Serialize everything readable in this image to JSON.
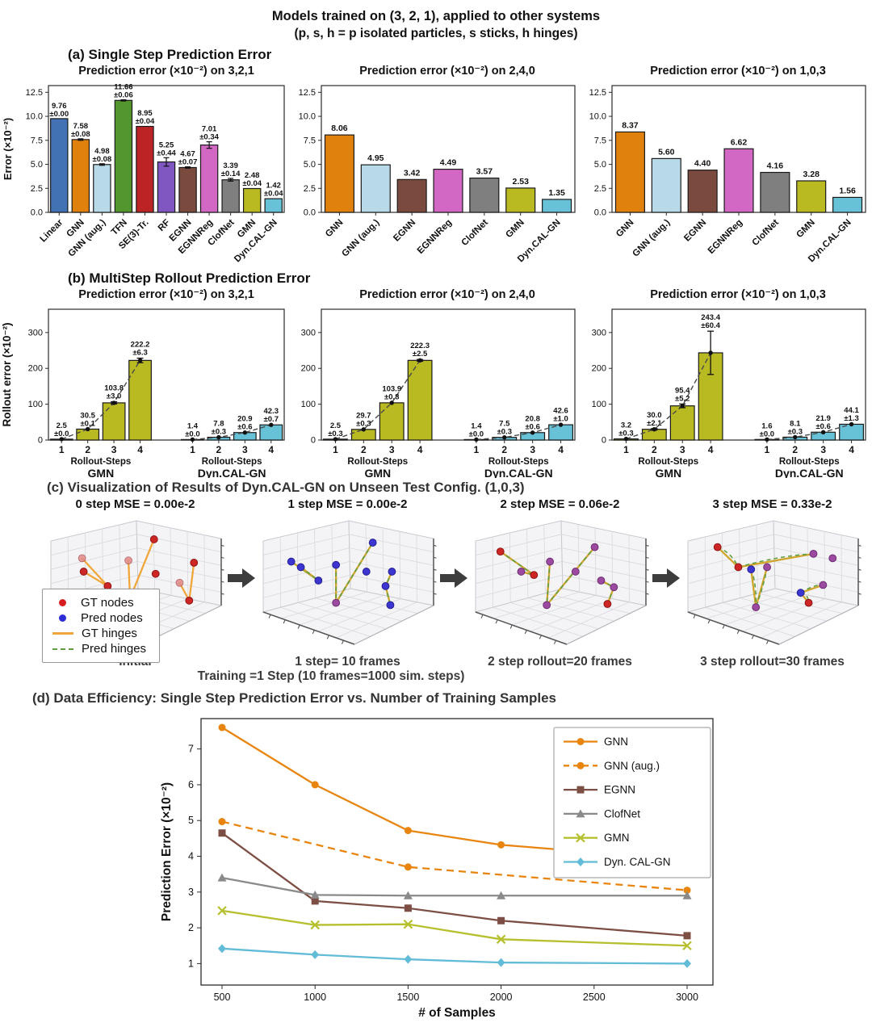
{
  "header": {
    "title_line1": "Models trained on (3, 2, 1), applied to other systems",
    "title_line2": "(p, s, h = p isolated particles, s sticks, h hinges)"
  },
  "panel_a": {
    "heading": "(a) Single Step Prediction Error"
  },
  "panel_b": {
    "heading": "(b) MultiStep Rollout Prediction Error"
  },
  "panel_c": {
    "heading": "(c) Visualization of Results of Dyn.CAL-GN on Unseen Test Config. (1,0,3)",
    "footnote": "Training =1 Step (10 frames=1000 sim. steps)",
    "legend": [
      {
        "label": "GT nodes",
        "marker": "dot",
        "color": "#d62020"
      },
      {
        "label": "Pred nodes",
        "marker": "dot",
        "color": "#2d2dd6"
      },
      {
        "label": "GT hinges",
        "marker": "line",
        "color": "#f0a63a"
      },
      {
        "label": "Pred hinges",
        "marker": "dash",
        "color": "#5f9e45"
      }
    ],
    "panels": [
      {
        "mse_title": "0 step MSE = 0.00e-2",
        "caption": "Initial",
        "edge_style": "gt",
        "diverge": false,
        "nodes": [
          [
            0.17,
            0.3,
            "faint"
          ],
          [
            0.18,
            0.42,
            "gt"
          ],
          [
            0.33,
            0.55,
            "gt"
          ],
          [
            0.46,
            0.32,
            "faint"
          ],
          [
            0.47,
            0.66,
            "faint"
          ],
          [
            0.62,
            0.13,
            "gt"
          ],
          [
            0.63,
            0.44,
            "gt"
          ],
          [
            0.78,
            0.52,
            "faint"
          ],
          [
            0.84,
            0.68,
            "gt"
          ],
          [
            0.87,
            0.34,
            "gt"
          ]
        ],
        "edges": [
          [
            0,
            2
          ],
          [
            1,
            2
          ],
          [
            3,
            4
          ],
          [
            4,
            5
          ],
          [
            7,
            8
          ],
          [
            8,
            9
          ]
        ]
      },
      {
        "mse_title": "1 step MSE = 0.00e-2",
        "caption": "1 step= 10 frames",
        "edge_style": "both",
        "diverge": false,
        "nodes": [
          [
            0.15,
            0.33,
            "pred"
          ],
          [
            0.21,
            0.38,
            "pred"
          ],
          [
            0.32,
            0.5,
            "pred"
          ],
          [
            0.43,
            0.36,
            "pred"
          ],
          [
            0.43,
            0.7,
            "mix"
          ],
          [
            0.66,
            0.16,
            "pred"
          ],
          [
            0.62,
            0.42,
            "pred"
          ],
          [
            0.78,
            0.42,
            "pred"
          ],
          [
            0.74,
            0.55,
            "pred"
          ],
          [
            0.77,
            0.72,
            "pred"
          ]
        ],
        "edges": [
          [
            0,
            2
          ],
          [
            1,
            2
          ],
          [
            3,
            4
          ],
          [
            4,
            5
          ],
          [
            7,
            8
          ],
          [
            8,
            9
          ]
        ]
      },
      {
        "mse_title": "2 step MSE = 0.06e-2",
        "caption": "2 step rollout=20 frames",
        "edge_style": "both",
        "diverge": false,
        "nodes": [
          [
            0.13,
            0.24,
            "gt"
          ],
          [
            0.26,
            0.42,
            "mix"
          ],
          [
            0.34,
            0.45,
            "gt"
          ],
          [
            0.44,
            0.33,
            "mix"
          ],
          [
            0.42,
            0.72,
            "mix"
          ],
          [
            0.72,
            0.2,
            "mix"
          ],
          [
            0.6,
            0.42,
            "mix"
          ],
          [
            0.76,
            0.5,
            "mix"
          ],
          [
            0.84,
            0.56,
            "mix"
          ],
          [
            0.8,
            0.71,
            "gt"
          ]
        ],
        "edges": [
          [
            0,
            2
          ],
          [
            1,
            2
          ],
          [
            3,
            4
          ],
          [
            4,
            5
          ],
          [
            7,
            8
          ],
          [
            8,
            9
          ]
        ]
      },
      {
        "mse_title": "3 step MSE = 0.33e-2",
        "caption": "3 step rollout=30 frames",
        "edge_style": "both",
        "diverge": true,
        "nodes": [
          [
            0.16,
            0.2,
            "gt"
          ],
          [
            0.29,
            0.38,
            "gt"
          ],
          [
            0.37,
            0.4,
            "pred"
          ],
          [
            0.47,
            0.38,
            "mix"
          ],
          [
            0.4,
            0.74,
            "mix"
          ],
          [
            0.76,
            0.26,
            "mix"
          ],
          [
            0.68,
            0.61,
            "pred"
          ],
          [
            0.73,
            0.7,
            "gt"
          ],
          [
            0.82,
            0.54,
            "mix"
          ],
          [
            0.88,
            0.3,
            "mix"
          ]
        ],
        "edges": [
          [
            0,
            1
          ],
          [
            1,
            5
          ],
          [
            2,
            4
          ],
          [
            3,
            4
          ],
          [
            6,
            7
          ],
          [
            6,
            8
          ]
        ]
      }
    ]
  },
  "panel_d": {
    "heading": "(d) Data Efficiency: Single Step Prediction Error vs. Number of Training Samples"
  },
  "chart_data": [
    {
      "id": "a1",
      "type": "bar",
      "title": "Prediction error (×10⁻²) on 3,2,1",
      "ylabel": "Error (×10⁻²)",
      "yticks": [
        0.0,
        2.5,
        5.0,
        7.5,
        10.0,
        12.5
      ],
      "ylim": [
        0,
        13.2
      ],
      "categories": [
        "Linear",
        "GNN",
        "GNN (aug.)",
        "TFN",
        "SE(3)-Tr.",
        "RF",
        "EGNN",
        "EGNNReg",
        "ClofNet",
        "GMN",
        "Dyn.CAL-GN"
      ],
      "values": [
        9.76,
        7.58,
        4.98,
        11.66,
        8.95,
        5.25,
        4.67,
        7.01,
        3.39,
        2.48,
        1.42
      ],
      "errors": [
        0.0,
        0.08,
        0.08,
        0.06,
        0.04,
        0.44,
        0.07,
        0.34,
        0.14,
        0.04,
        0.04
      ],
      "colors": [
        "#4272b4",
        "#e1810d",
        "#b8d9e8",
        "#53962d",
        "#bc2325",
        "#8057c1",
        "#7a4a3f",
        "#d268c3",
        "#7f7f7f",
        "#b9ba21",
        "#67c1d7"
      ]
    },
    {
      "id": "a2",
      "type": "bar",
      "title": "Prediction error (×10⁻²) on 2,4,0",
      "ylabel": "",
      "yticks": [
        0.0,
        2.5,
        5.0,
        7.5,
        10.0,
        12.5
      ],
      "ylim": [
        0,
        13.2
      ],
      "categories": [
        "GNN",
        "GNN (aug.)",
        "EGNN",
        "EGNNReg",
        "ClofNet",
        "GMN",
        "Dyn.CAL-GN"
      ],
      "values": [
        8.06,
        4.95,
        3.42,
        4.49,
        3.57,
        2.53,
        1.35
      ],
      "errors": null,
      "colors": [
        "#e1810d",
        "#b8d9e8",
        "#7a4a3f",
        "#d268c3",
        "#7f7f7f",
        "#b9ba21",
        "#67c1d7"
      ]
    },
    {
      "id": "a3",
      "type": "bar",
      "title": "Prediction error (×10⁻²) on 1,0,3",
      "ylabel": "",
      "yticks": [
        0.0,
        2.5,
        5.0,
        7.5,
        10.0,
        12.5
      ],
      "ylim": [
        0,
        13.2
      ],
      "categories": [
        "GNN",
        "GNN (aug.)",
        "EGNN",
        "EGNNReg",
        "ClofNet",
        "GMN",
        "Dyn.CAL-GN"
      ],
      "values": [
        8.37,
        5.6,
        4.4,
        6.62,
        4.16,
        3.28,
        1.56
      ],
      "errors": null,
      "colors": [
        "#e1810d",
        "#b8d9e8",
        "#7a4a3f",
        "#d268c3",
        "#7f7f7f",
        "#b9ba21",
        "#67c1d7"
      ]
    },
    {
      "id": "b1",
      "type": "grouped_bar",
      "title": "Prediction error (×10⁻²) on 3,2,1",
      "ylabel": "Rollout error (×10⁻²)",
      "yticks": [
        0,
        100,
        200,
        300
      ],
      "ylim": [
        0,
        365
      ],
      "xlabel": "Rollout-Steps",
      "categories": [
        1,
        2,
        3,
        4
      ],
      "series": [
        {
          "name": "GMN",
          "color": "#b9ba21",
          "values": [
            2.5,
            30.5,
            103.8,
            222.2
          ],
          "errors": [
            0.0,
            0.1,
            3.0,
            6.3
          ]
        },
        {
          "name": "Dyn.CAL-GN",
          "color": "#67c1d7",
          "values": [
            1.4,
            7.8,
            20.9,
            42.3
          ],
          "errors": [
            0.0,
            0.3,
            0.6,
            0.7
          ]
        }
      ]
    },
    {
      "id": "b2",
      "type": "grouped_bar",
      "title": "Prediction error (×10⁻²) on 2,4,0",
      "ylabel": "",
      "yticks": [
        0,
        100,
        200,
        300
      ],
      "ylim": [
        0,
        365
      ],
      "xlabel": "Rollout-Steps",
      "categories": [
        1,
        2,
        3,
        4
      ],
      "series": [
        {
          "name": "GMN",
          "color": "#b9ba21",
          "values": [
            2.5,
            29.7,
            103.9,
            222.3
          ],
          "errors": [
            0.3,
            0.3,
            0.8,
            2.5
          ]
        },
        {
          "name": "Dyn.CAL-GN",
          "color": "#67c1d7",
          "values": [
            1.4,
            7.5,
            20.8,
            42.6
          ],
          "errors": [
            0.0,
            0.3,
            0.6,
            1.0
          ]
        }
      ]
    },
    {
      "id": "b3",
      "type": "grouped_bar",
      "title": "Prediction error (×10⁻²) on 1,0,3",
      "ylabel": "",
      "yticks": [
        0,
        100,
        200,
        300
      ],
      "ylim": [
        0,
        365
      ],
      "xlabel": "Rollout-Steps",
      "categories": [
        1,
        2,
        3,
        4
      ],
      "series": [
        {
          "name": "GMN",
          "color": "#b9ba21",
          "values": [
            3.2,
            30.0,
            95.4,
            243.4
          ],
          "errors": [
            0.3,
            2.1,
            5.2,
            60.4
          ]
        },
        {
          "name": "Dyn.CAL-GN",
          "color": "#67c1d7",
          "values": [
            1.6,
            8.1,
            21.9,
            44.1
          ],
          "errors": [
            0.0,
            0.3,
            0.6,
            1.3
          ]
        }
      ]
    },
    {
      "id": "d",
      "type": "line",
      "title": "",
      "xlabel": "# of Samples",
      "ylabel": "Prediction Error (×10⁻²)",
      "xticks": [
        500,
        1000,
        1500,
        2000,
        2500,
        3000
      ],
      "yticks": [
        1,
        2,
        3,
        4,
        5,
        6,
        7
      ],
      "legend_position": "upper right",
      "grid": false,
      "series": [
        {
          "name": "GNN",
          "color": "#e8850f",
          "marker": "circle",
          "dashed": false,
          "x": [
            500,
            1000,
            1500,
            2000,
            3000
          ],
          "y": [
            7.6,
            6.0,
            4.72,
            4.32,
            3.9
          ]
        },
        {
          "name": "GNN (aug.)",
          "color": "#e8850f",
          "marker": "circle",
          "dashed": true,
          "x": [
            500,
            1500,
            3000
          ],
          "y": [
            4.97,
            3.7,
            3.05
          ]
        },
        {
          "name": "EGNN",
          "color": "#7d4f44",
          "marker": "square",
          "dashed": false,
          "x": [
            500,
            1000,
            1500,
            2000,
            3000
          ],
          "y": [
            4.65,
            2.75,
            2.55,
            2.2,
            1.78
          ]
        },
        {
          "name": "ClofNet",
          "color": "#8a8a8a",
          "marker": "triangle",
          "dashed": false,
          "x": [
            500,
            1000,
            1500,
            2000,
            3000
          ],
          "y": [
            3.4,
            2.92,
            2.9,
            2.9,
            2.9
          ]
        },
        {
          "name": "GMN",
          "color": "#b6c02e",
          "marker": "x",
          "dashed": false,
          "x": [
            500,
            1000,
            1500,
            2000,
            3000
          ],
          "y": [
            2.48,
            2.08,
            2.1,
            1.68,
            1.5
          ]
        },
        {
          "name": "Dyn. CAL-GN",
          "color": "#62bcd8",
          "marker": "diamond",
          "dashed": false,
          "x": [
            500,
            1000,
            1500,
            2000,
            3000
          ],
          "y": [
            1.42,
            1.25,
            1.12,
            1.03,
            1.0
          ]
        }
      ]
    }
  ]
}
